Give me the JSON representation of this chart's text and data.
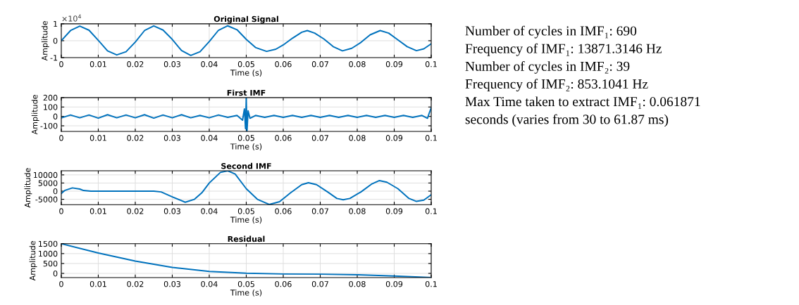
{
  "chart_data": [
    {
      "type": "line",
      "title": "Original Signal",
      "xlabel": "Time (s)",
      "ylabel": "Amplitude",
      "grid": true,
      "xlim": [
        0,
        0.1
      ],
      "ylim": [
        -1,
        1
      ],
      "xticks": [
        0,
        0.01,
        0.02,
        0.03,
        0.04,
        0.05,
        0.06,
        0.07,
        0.08,
        0.09,
        0.1
      ],
      "yticks": [
        -1,
        0,
        1
      ],
      "annotations": [
        "×10$^{4}$"
      ],
      "series": [
        {
          "color": "#0072bd",
          "x": [
            0,
            0.0025,
            0.005,
            0.0075,
            0.01,
            0.0125,
            0.015,
            0.0175,
            0.02,
            0.0225,
            0.025,
            0.0275,
            0.03,
            0.0325,
            0.035,
            0.0375,
            0.04,
            0.0425,
            0.045,
            0.0475,
            0.05,
            0.0525,
            0.0555,
            0.058,
            0.06,
            0.0625,
            0.065,
            0.0665,
            0.0685,
            0.071,
            0.0735,
            0.076,
            0.0785,
            0.081,
            0.0835,
            0.0862,
            0.0885,
            0.091,
            0.0935,
            0.096,
            0.098,
            0.1
          ],
          "values": [
            0,
            0.6,
            0.86,
            0.62,
            0.02,
            -0.6,
            -0.84,
            -0.65,
            -0.08,
            0.6,
            0.87,
            0.63,
            0.08,
            -0.58,
            -0.87,
            -0.65,
            -0.05,
            0.62,
            0.88,
            0.65,
            0.08,
            -0.4,
            -0.63,
            -0.5,
            -0.25,
            0.15,
            0.5,
            0.6,
            0.45,
            0.1,
            -0.35,
            -0.6,
            -0.45,
            -0.1,
            0.35,
            0.6,
            0.45,
            0.05,
            -0.35,
            -0.59,
            -0.48,
            -0.18
          ]
        }
      ]
    },
    {
      "type": "line",
      "title": "First IMF",
      "xlabel": "Time (s)",
      "ylabel": "Amplitude",
      "grid": true,
      "xlim": [
        0,
        0.1
      ],
      "ylim": [
        -160,
        200
      ],
      "xticks": [
        0,
        0.01,
        0.02,
        0.03,
        0.04,
        0.05,
        0.06,
        0.07,
        0.08,
        0.09,
        0.1
      ],
      "yticks": [
        -100,
        0,
        100,
        200
      ],
      "series": [
        {
          "color": "#0072bd",
          "x": [
            0,
            0.0025,
            0.005,
            0.0075,
            0.01,
            0.0125,
            0.015,
            0.0175,
            0.02,
            0.0225,
            0.025,
            0.0275,
            0.03,
            0.0325,
            0.035,
            0.0375,
            0.04,
            0.0425,
            0.045,
            0.0475,
            0.049,
            0.0495,
            0.0498,
            0.05,
            0.0502,
            0.0505,
            0.051,
            0.0525,
            0.055,
            0.0575,
            0.06,
            0.0625,
            0.065,
            0.0675,
            0.07,
            0.0725,
            0.075,
            0.0775,
            0.08,
            0.0825,
            0.085,
            0.0875,
            0.09,
            0.0925,
            0.095,
            0.0975,
            0.099,
            0.0995,
            0.1
          ],
          "values": [
            -15,
            15,
            -15,
            15,
            -18,
            18,
            -15,
            15,
            -15,
            18,
            -18,
            15,
            -15,
            18,
            -15,
            10,
            -15,
            15,
            -10,
            10,
            -40,
            80,
            -130,
            200,
            -160,
            60,
            -20,
            10,
            -10,
            10,
            -10,
            10,
            -10,
            10,
            -10,
            10,
            -10,
            10,
            -10,
            10,
            -10,
            10,
            -10,
            10,
            -10,
            10,
            -20,
            40,
            90
          ]
        }
      ]
    },
    {
      "type": "line",
      "title": "Second IMF",
      "xlabel": "Time (s)",
      "ylabel": "Amplitude",
      "grid": true,
      "xlim": [
        0,
        0.1
      ],
      "ylim": [
        -8300,
        12500
      ],
      "xticks": [
        0,
        0.01,
        0.02,
        0.03,
        0.04,
        0.05,
        0.06,
        0.07,
        0.08,
        0.09,
        0.1
      ],
      "yticks": [
        -5000,
        0,
        5000,
        10000
      ],
      "series": [
        {
          "color": "#0072bd",
          "x": [
            0,
            0.001,
            0.003,
            0.005,
            0.006,
            0.008,
            0.025,
            0.027,
            0.03,
            0.0335,
            0.036,
            0.038,
            0.04,
            0.043,
            0.045,
            0.047,
            0.05,
            0.053,
            0.0562,
            0.059,
            0.062,
            0.065,
            0.0668,
            0.069,
            0.072,
            0.0745,
            0.0762,
            0.078,
            0.081,
            0.084,
            0.086,
            0.088,
            0.091,
            0.094,
            0.096,
            0.098,
            0.1
          ],
          "values": [
            -1500,
            500,
            2000,
            1300,
            400,
            0,
            0,
            -500,
            -3500,
            -6800,
            -5000,
            -1000,
            5000,
            11500,
            12500,
            10500,
            1500,
            -5000,
            -8200,
            -6500,
            -1000,
            4000,
            5200,
            4000,
            -500,
            -4500,
            -5300,
            -4500,
            -500,
            4500,
            6500,
            5500,
            1500,
            -4500,
            -6300,
            -5500,
            -2200
          ]
        }
      ]
    },
    {
      "type": "line",
      "title": "Residual",
      "xlabel": "Time (s)",
      "ylabel": "Amplitude",
      "grid": true,
      "xlim": [
        0,
        0.1
      ],
      "ylim": [
        -210,
        1500
      ],
      "xticks": [
        0,
        0.01,
        0.02,
        0.03,
        0.04,
        0.05,
        0.06,
        0.07,
        0.08,
        0.09,
        0.1
      ],
      "yticks": [
        0,
        500,
        1000,
        1500
      ],
      "series": [
        {
          "color": "#0072bd",
          "x": [
            0,
            0.01,
            0.02,
            0.03,
            0.04,
            0.05,
            0.06,
            0.07,
            0.08,
            0.09,
            0.1
          ],
          "values": [
            1500,
            1030,
            620,
            300,
            100,
            10,
            -30,
            -40,
            -70,
            -130,
            -210
          ]
        }
      ]
    },
    {
      "type": "other",
      "annotations": [
        "Number of cycles in IMF₁: 690",
        "Frequency of IMF₁: 13871.3146 Hz",
        "Number of cycles in IMF₂: 39",
        "Frequency of IMF₂: 853.1041 Hz",
        "Max Time taken to extract IMF₁: 0.061871",
        "seconds (varies from 30 to 61.87 ms)"
      ]
    }
  ]
}
